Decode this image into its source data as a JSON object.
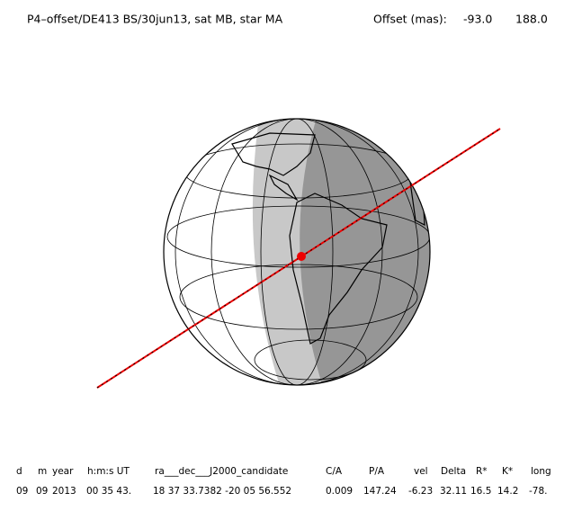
{
  "header": {
    "title": "P4–offset/DE413 BS/30jun13, sat MB, star MA",
    "offset_label": "Offset (mas):",
    "offset_x": "-93.0",
    "offset_y": "188.0"
  },
  "table": {
    "columns": [
      "d",
      "m",
      "year",
      "h:m:s UT",
      "ra___dec___J2000_candidate",
      "C/A",
      "P/A",
      "vel",
      "Delta",
      "R*",
      "K*",
      "long"
    ],
    "rows": [
      [
        "09",
        "09",
        "2013",
        "00 35 43.",
        "18 37 33.7382 -20 05 56.552",
        "0.009",
        "147.24",
        "-6.23",
        "32.11",
        "16.5",
        "14.2",
        "-78."
      ]
    ]
  }
}
